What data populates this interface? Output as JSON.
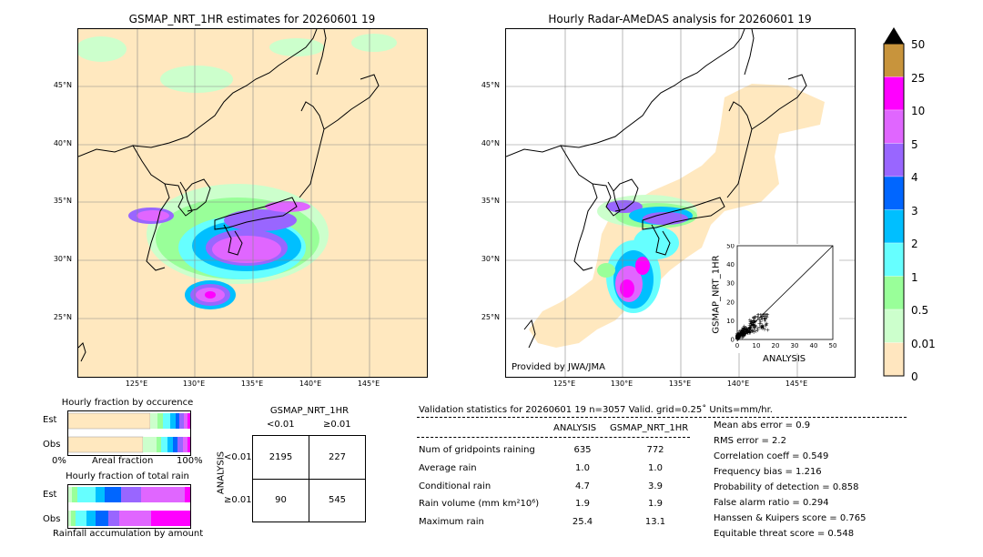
{
  "left_map": {
    "title": "GSMAP_NRT_1HR estimates for 20260601 19",
    "lat_labels": [
      "45°N",
      "40°N",
      "35°N",
      "30°N",
      "25°N"
    ],
    "lon_labels": [
      "125°E",
      "130°E",
      "135°E",
      "140°E",
      "145°E"
    ]
  },
  "right_map": {
    "title": "Hourly Radar-AMeDAS analysis for 20260601 19",
    "lat_labels": [
      "45°N",
      "40°N",
      "35°N",
      "30°N",
      "25°N"
    ],
    "lon_labels": [
      "125°E",
      "130°E",
      "135°E",
      "140°E",
      "145°E"
    ],
    "credit": "Provided by JWA/JMA"
  },
  "colorbar": {
    "labels": [
      "50",
      "25",
      "10",
      "5",
      "4",
      "3",
      "2",
      "1",
      "0.5",
      "0.01",
      "0"
    ],
    "colors": [
      "#c8943c",
      "#ff00ff",
      "#e066ff",
      "#9966ff",
      "#0066ff",
      "#00bfff",
      "#66ffff",
      "#99ff99",
      "#ccffcc",
      "#ffe6bf"
    ]
  },
  "chart_data": [
    {
      "type": "scatter",
      "title": "",
      "xlabel": "ANALYSIS",
      "ylabel": "GSMAP_NRT_1HR",
      "xlim": [
        0,
        50
      ],
      "ylim": [
        0,
        50
      ],
      "ticks": [
        "0",
        "10",
        "20",
        "30",
        "40",
        "50"
      ]
    },
    {
      "type": "bar",
      "title": "Hourly fraction by occurence",
      "categories": [
        "Est",
        "Obs"
      ],
      "xlabel": "Areal fraction",
      "x_left": "0%",
      "x_right": "100%"
    },
    {
      "type": "bar",
      "title": "Hourly fraction of total rain",
      "categories": [
        "Est",
        "Obs"
      ],
      "xlabel": "Rainfall accumulation by amount"
    },
    {
      "type": "table",
      "title": "GSMAP_NRT_1HR",
      "col_headers": [
        "<0.01",
        "≥0.01"
      ],
      "row_axis": "ANALYSIS",
      "row_headers": [
        "<0.01",
        "≥0.01"
      ],
      "cells": [
        [
          "2195",
          "227"
        ],
        [
          "90",
          "545"
        ]
      ]
    }
  ],
  "validation": {
    "header": "Validation statistics for 20260601 19  n=3057 Valid. grid=0.25˚ Units=mm/hr.",
    "col_analysis": "ANALYSIS",
    "col_gsmap": "GSMAP_NRT_1HR",
    "rows": [
      {
        "label": "Num of gridpoints raining",
        "a": "635",
        "g": "772"
      },
      {
        "label": "Average rain",
        "a": "1.0",
        "g": "1.0"
      },
      {
        "label": "Conditional rain",
        "a": "4.7",
        "g": "3.9"
      },
      {
        "label": "Rain volume (mm km²10⁶)",
        "a": "1.9",
        "g": "1.9"
      },
      {
        "label": "Maximum rain",
        "a": "25.4",
        "g": "13.1"
      }
    ],
    "scores": [
      "Mean abs error =    0.9",
      "RMS error =    2.2",
      "Correlation coeff =  0.549",
      "Frequency bias =  1.216",
      "Probability of detection =  0.858",
      "False alarm ratio =  0.294",
      "Hanssen & Kuipers score =  0.765",
      "Equitable threat score =  0.548"
    ]
  }
}
